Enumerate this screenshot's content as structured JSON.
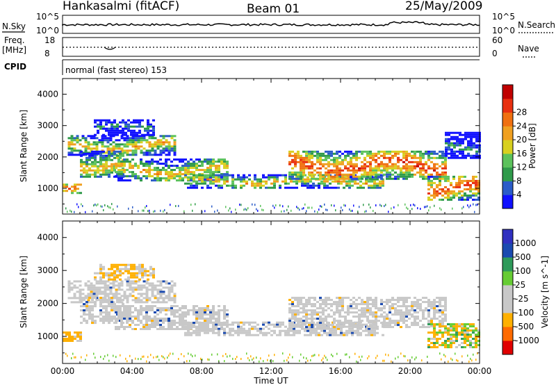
{
  "header": {
    "station": "Hankasalmi (fitACF)",
    "beam": "Beam 01",
    "date": "25/May/2009"
  },
  "strips": {
    "nsky_label": "N.Sky",
    "nsky_ticks": [
      "10^5",
      "10^0"
    ],
    "nsearch_label": "N.Search",
    "nsearch_ticks": [
      "10^5",
      "10^0"
    ],
    "freq_label_1": "Freq.",
    "freq_label_2": "[MHz]",
    "freq_ticks": [
      "18",
      "8"
    ],
    "nave_label": "Nave",
    "nave_ticks": [
      "60",
      "0"
    ],
    "cpid_label": "CPID",
    "mode_text": "normal (fast stereo) 153"
  },
  "colors": {
    "power": [
      "#1010ff",
      "#2b5cc8",
      "#2f9a4a",
      "#5cc25c",
      "#d8d020",
      "#f0a020",
      "#f07010",
      "#e83010",
      "#c00000"
    ],
    "velocity": [
      "#e00000",
      "#ff6a00",
      "#ffb000",
      "#c8c8c8",
      "#c8c8c8",
      "#66cc33",
      "#2e9a5a",
      "#1a4ab0",
      "#3030c0"
    ]
  },
  "chart_data": [
    {
      "type": "heatmap",
      "panel": "power",
      "ylabel": "Slant Range [km]",
      "xlabel": "",
      "x_ticks": [
        "00:00",
        "04:00",
        "08:00",
        "12:00",
        "16:00",
        "20:00",
        "00:00"
      ],
      "y_ticks": [
        "1000",
        "2000",
        "3000",
        "4000"
      ],
      "ylim": [
        180,
        4500
      ],
      "colorbar": {
        "label": "Power [dB]",
        "ticks": [
          "4",
          "8",
          "12",
          "16",
          "20",
          "24",
          "28"
        ]
      },
      "echo_bands": [
        {
          "t_start": 0.0,
          "t_end": 1.1,
          "range": [
            850,
            1150
          ],
          "level": "high"
        },
        {
          "t_start": 0.3,
          "t_end": 6.5,
          "range": [
            2050,
            2700
          ],
          "level": "medium"
        },
        {
          "t_start": 1.0,
          "t_end": 3.5,
          "range": [
            1400,
            2200
          ],
          "level": "medium"
        },
        {
          "t_start": 3.0,
          "t_end": 9.5,
          "range": [
            1250,
            1950
          ],
          "level": "medium"
        },
        {
          "t_start": 7.0,
          "t_end": 18.5,
          "range": [
            1050,
            1450
          ],
          "level": "medium"
        },
        {
          "t_start": 13.0,
          "t_end": 22.0,
          "range": [
            1300,
            2200
          ],
          "level": "high"
        },
        {
          "t_start": 21.0,
          "t_end": 24.0,
          "range": [
            650,
            1400
          ],
          "level": "high"
        },
        {
          "t_start": 1.8,
          "t_end": 5.2,
          "range": [
            2700,
            3200
          ],
          "level": "low"
        },
        {
          "t_start": 22.0,
          "t_end": 24.0,
          "range": [
            2000,
            2800
          ],
          "level": "low"
        }
      ]
    },
    {
      "type": "heatmap",
      "panel": "velocity",
      "ylabel": "Slant Range [km]",
      "xlabel": "Time UT",
      "x_ticks": [
        "00:00",
        "04:00",
        "08:00",
        "12:00",
        "16:00",
        "20:00",
        "00:00"
      ],
      "y_ticks": [
        "1000",
        "2000",
        "3000",
        "4000"
      ],
      "ylim": [
        180,
        4500
      ],
      "colorbar": {
        "label": "Velocity [m s^-1]",
        "ticks": [
          "1000",
          "500",
          "100",
          "25",
          "-25",
          "-100",
          "-500",
          "-1000"
        ]
      },
      "echo_bands": [
        {
          "t_start": 0.0,
          "t_end": 1.1,
          "range": [
            850,
            1150
          ],
          "level": "orange"
        },
        {
          "t_start": 0.3,
          "t_end": 6.5,
          "range": [
            2050,
            2700
          ],
          "level": "grey"
        },
        {
          "t_start": 1.0,
          "t_end": 3.5,
          "range": [
            1400,
            2200
          ],
          "level": "grey"
        },
        {
          "t_start": 3.0,
          "t_end": 9.5,
          "range": [
            1250,
            1950
          ],
          "level": "grey"
        },
        {
          "t_start": 7.0,
          "t_end": 18.5,
          "range": [
            1050,
            1450
          ],
          "level": "grey"
        },
        {
          "t_start": 13.0,
          "t_end": 22.0,
          "range": [
            1300,
            2200
          ],
          "level": "grey"
        },
        {
          "t_start": 21.0,
          "t_end": 24.0,
          "range": [
            650,
            1400
          ],
          "level": "mixed"
        },
        {
          "t_start": 1.8,
          "t_end": 5.2,
          "range": [
            2700,
            3200
          ],
          "level": "orange"
        }
      ]
    }
  ]
}
